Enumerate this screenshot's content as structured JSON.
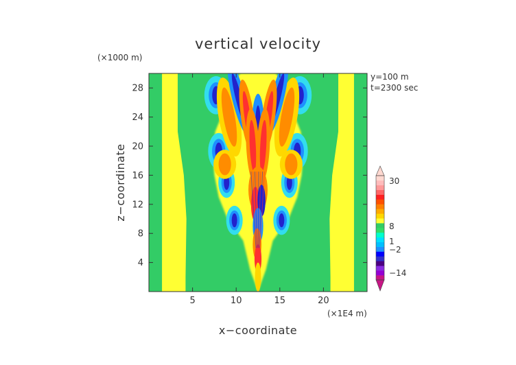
{
  "chart_data": {
    "type": "heatmap",
    "title": "vertical velocity",
    "xlabel": "x−coordinate",
    "ylabel": "z−coordinate",
    "x_unit": "(×1E4 m)",
    "y_unit": "(×1000 m)",
    "info_lines": [
      "y=100 m",
      "t=2300 sec"
    ],
    "xlim": [
      0,
      25
    ],
    "ylim": [
      0,
      30
    ],
    "x_ticks": [
      5,
      10,
      15,
      20
    ],
    "y_ticks": [
      4,
      8,
      12,
      16,
      20,
      24,
      28
    ],
    "x_tick_labels": [
      "5",
      "10",
      "15",
      "20"
    ],
    "y_tick_labels": [
      "4",
      "8",
      "12",
      "16",
      "20",
      "24",
      "28"
    ],
    "plume_center_x": 12.5,
    "colorbar": {
      "labels": [
        "30",
        "8",
        "1",
        "−2",
        "−14"
      ],
      "label_values": [
        30,
        8,
        1,
        -2,
        -14
      ],
      "colors": [
        "#c71585",
        "#9400d3",
        "#8a2be2",
        "#4b0082",
        "#3030cc",
        "#0000ff",
        "#1e90ff",
        "#00bfff",
        "#00e0ff",
        "#00ffcc",
        "#33dd66",
        "#33cc66",
        "#ffff33",
        "#ffd700",
        "#ffaa00",
        "#ff8000",
        "#ff5000",
        "#ff2020",
        "#ff6666",
        "#ff9999",
        "#ffbbbb",
        "#ffd8d0"
      ]
    },
    "field_colors": {
      "background": "#33cc66",
      "light_band": "#ffff33",
      "deep_negative": "#2222cc",
      "negative": "#1e90ff",
      "weak_negative": "#33ddee",
      "weak_positive": "#ffd700",
      "positive": "#ff8c00",
      "strong_positive": "#ff3030"
    }
  }
}
